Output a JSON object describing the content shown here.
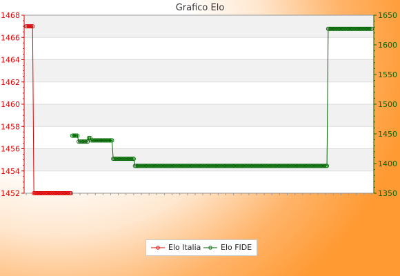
{
  "chart_data": {
    "type": "line",
    "title": "Grafico Elo",
    "xlabel": "",
    "ylabel": "",
    "grid": true,
    "legend_placement": "bottom-center",
    "left_axis": {
      "ylim": [
        1452,
        1468
      ],
      "ticks": [
        "1452",
        "1454",
        "1456",
        "1458",
        "1460",
        "1462",
        "1464",
        "1466",
        "1468"
      ],
      "color": "#dd0000"
    },
    "right_axis": {
      "ylim": [
        1350,
        1650
      ],
      "ticks": [
        "1350",
        "1400",
        "1450",
        "1500",
        "1550",
        "1600",
        "1650"
      ],
      "color": "#006600"
    },
    "series": [
      {
        "name": "Elo Italia",
        "axis": "left",
        "color": "#dd0000",
        "segments": [
          {
            "x": [
              0,
              5
            ],
            "y": [
              1467,
              1467
            ]
          },
          {
            "x": [
              6,
              35
            ],
            "y": [
              1452,
              1452
            ]
          }
        ]
      },
      {
        "name": "Elo FIDE",
        "axis": "right",
        "color": "#006600",
        "segments": [
          {
            "x": [
              36,
              40
            ],
            "y": [
              1447,
              1447
            ]
          },
          {
            "x": [
              41,
              48
            ],
            "y": [
              1437,
              1437
            ]
          },
          {
            "x": [
              49,
              50
            ],
            "y": [
              1443,
              1443
            ]
          },
          {
            "x": [
              51,
              67
            ],
            "y": [
              1439,
              1439
            ]
          },
          {
            "x": [
              68,
              84
            ],
            "y": [
              1408,
              1408
            ]
          },
          {
            "x": [
              85,
              235
            ],
            "y": [
              1396,
              1396
            ]
          },
          {
            "x": [
              236,
              270
            ],
            "y": [
              1627,
              1627
            ]
          }
        ]
      }
    ],
    "x_count": 271
  }
}
